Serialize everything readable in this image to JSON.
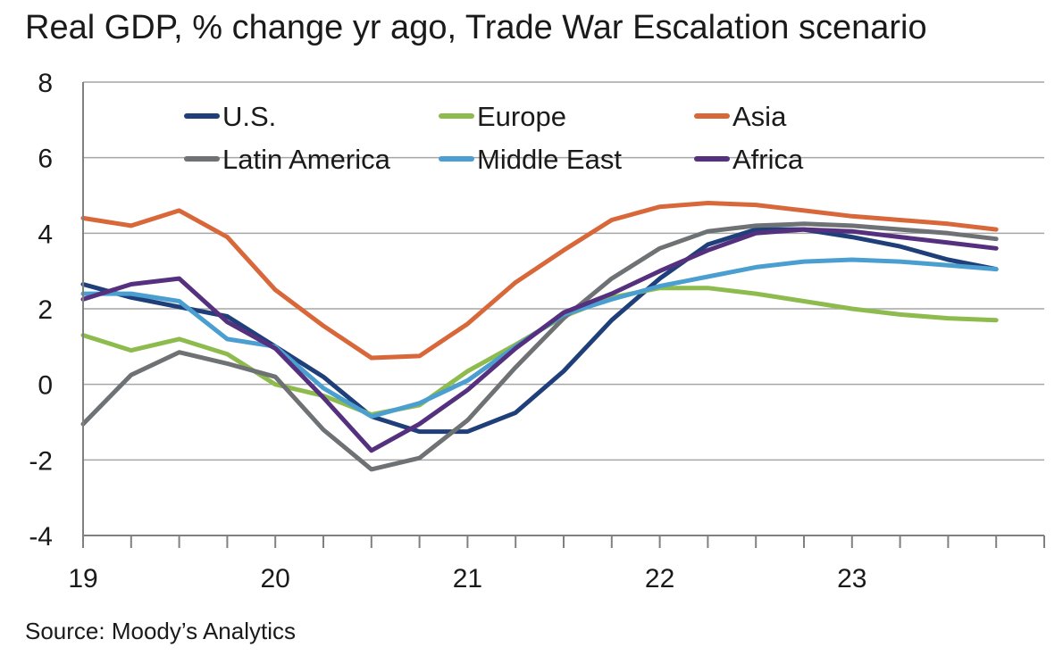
{
  "chart_data": {
    "type": "line",
    "title": "Real GDP, % change yr ago, Trade War Escalation scenario",
    "source": "Source: Moody’s Analytics",
    "xlabel": "",
    "ylabel": "",
    "x_tick_labels": [
      "19",
      "20",
      "21",
      "22",
      "23"
    ],
    "y_tick_labels": [
      "8",
      "6",
      "4",
      "2",
      "0",
      "-2",
      "-4"
    ],
    "ylim": [
      -4,
      8
    ],
    "grid": "horizontal",
    "legend_position": "top",
    "x": [
      "2019Q1",
      "2019Q2",
      "2019Q3",
      "2019Q4",
      "2020Q1",
      "2020Q2",
      "2020Q3",
      "2020Q4",
      "2021Q1",
      "2021Q2",
      "2021Q3",
      "2021Q4",
      "2022Q1",
      "2022Q2",
      "2022Q3",
      "2022Q4",
      "2023Q1",
      "2023Q2",
      "2023Q3",
      "2023Q4"
    ],
    "series": [
      {
        "name": "U.S.",
        "color": "#1f3f7a",
        "values": [
          2.65,
          2.3,
          2.05,
          1.8,
          1.0,
          0.2,
          -0.85,
          -1.25,
          -1.25,
          -0.75,
          0.35,
          1.7,
          2.8,
          3.7,
          4.1,
          4.1,
          3.9,
          3.65,
          3.3,
          3.05
        ]
      },
      {
        "name": "Europe",
        "color": "#8dbb4d",
        "values": [
          1.3,
          0.9,
          1.2,
          0.8,
          0.0,
          -0.3,
          -0.8,
          -0.55,
          0.35,
          1.05,
          1.8,
          2.3,
          2.55,
          2.55,
          2.4,
          2.2,
          2.0,
          1.85,
          1.75,
          1.7
        ]
      },
      {
        "name": "Asia",
        "color": "#d8683a",
        "values": [
          4.4,
          4.2,
          4.6,
          3.9,
          2.5,
          1.55,
          0.7,
          0.75,
          1.6,
          2.7,
          3.55,
          4.35,
          4.7,
          4.8,
          4.75,
          4.6,
          4.45,
          4.35,
          4.25,
          4.1
        ]
      },
      {
        "name": "Latin America",
        "color": "#6e7275",
        "values": [
          -1.05,
          0.25,
          0.85,
          0.55,
          0.2,
          -1.2,
          -2.25,
          -1.95,
          -0.95,
          0.45,
          1.75,
          2.8,
          3.6,
          4.05,
          4.2,
          4.25,
          4.2,
          4.1,
          4.0,
          3.85
        ]
      },
      {
        "name": "Middle East",
        "color": "#4a9fd0",
        "values": [
          2.4,
          2.4,
          2.2,
          1.2,
          1.0,
          -0.1,
          -0.85,
          -0.5,
          0.1,
          1.0,
          1.85,
          2.25,
          2.6,
          2.85,
          3.1,
          3.25,
          3.3,
          3.25,
          3.15,
          3.05
        ]
      },
      {
        "name": "Africa",
        "color": "#55307e",
        "values": [
          2.25,
          2.65,
          2.8,
          1.65,
          0.95,
          -0.35,
          -1.75,
          -1.05,
          -0.15,
          0.95,
          1.9,
          2.4,
          3.0,
          3.55,
          4.0,
          4.1,
          4.05,
          3.9,
          3.75,
          3.6
        ]
      }
    ]
  }
}
